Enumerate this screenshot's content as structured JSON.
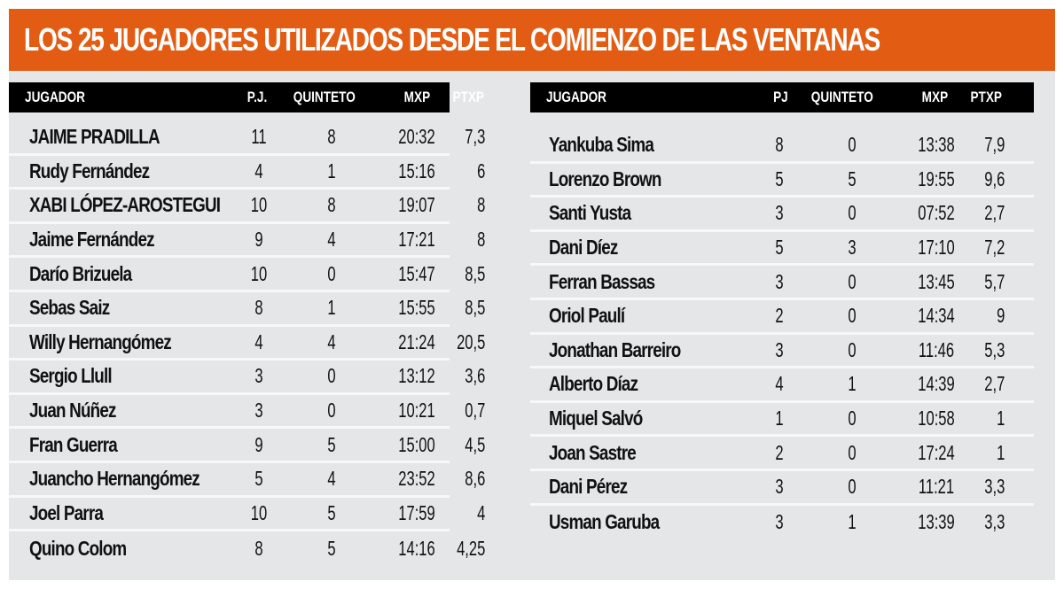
{
  "title": "LOS 25 JUGADORES UTILIZADOS DESDE EL COMIENZO DE LAS VENTANAS",
  "colors": {
    "banner": "#e35c14",
    "panel": "#e4e6e8",
    "header_bar": "#000000",
    "divider": "#f7f8f9"
  },
  "left_table": {
    "headers": {
      "player": "JUGADOR",
      "games": "P.J.",
      "starts": "QUINTETO",
      "minutes": "MXP",
      "points": "PTXP"
    },
    "rows": [
      {
        "player": "JAIME PRADILLA",
        "games": "11",
        "starts": "8",
        "minutes": "20:32",
        "points": "7,3"
      },
      {
        "player": "Rudy Fernández",
        "games": "4",
        "starts": "1",
        "minutes": "15:16",
        "points": "6"
      },
      {
        "player": "XABI LÓPEZ-AROSTEGUI",
        "games": "10",
        "starts": "8",
        "minutes": "19:07",
        "points": "8"
      },
      {
        "player": "Jaime Fernández",
        "games": "9",
        "starts": "4",
        "minutes": "17:21",
        "points": "8"
      },
      {
        "player": "Darío Brizuela",
        "games": "10",
        "starts": "0",
        "minutes": "15:47",
        "points": "8,5"
      },
      {
        "player": "Sebas Saiz",
        "games": "8",
        "starts": "1",
        "minutes": "15:55",
        "points": "8,5"
      },
      {
        "player": "Willy Hernangómez",
        "games": "4",
        "starts": "4",
        "minutes": "21:24",
        "points": "20,5"
      },
      {
        "player": "Sergio Llull",
        "games": "3",
        "starts": "0",
        "minutes": "13:12",
        "points": "3,6"
      },
      {
        "player": "Juan Núñez",
        "games": "3",
        "starts": "0",
        "minutes": "10:21",
        "points": "0,7"
      },
      {
        "player": "Fran Guerra",
        "games": "9",
        "starts": "5",
        "minutes": "15:00",
        "points": "4,5"
      },
      {
        "player": "Juancho Hernangómez",
        "games": "5",
        "starts": "4",
        "minutes": "23:52",
        "points": "8,6"
      },
      {
        "player": "Joel Parra",
        "games": "10",
        "starts": "5",
        "minutes": "17:59",
        "points": "4"
      },
      {
        "player": "Quino Colom",
        "games": "8",
        "starts": "5",
        "minutes": "14:16",
        "points": "4,25"
      }
    ]
  },
  "right_table": {
    "headers": {
      "player": "JUGADOR",
      "games": "PJ",
      "starts": "QUINTETO",
      "minutes": "MXP",
      "points": "PTXP"
    },
    "rows": [
      {
        "player": "Yankuba Sima",
        "games": "8",
        "starts": "0",
        "minutes": "13:38",
        "points": "7,9"
      },
      {
        "player": "Lorenzo Brown",
        "games": "5",
        "starts": "5",
        "minutes": "19:55",
        "points": "9,6"
      },
      {
        "player": "Santi Yusta",
        "games": "3",
        "starts": "0",
        "minutes": "07:52",
        "points": "2,7"
      },
      {
        "player": "Dani Díez",
        "games": "5",
        "starts": "3",
        "minutes": "17:10",
        "points": "7,2"
      },
      {
        "player": "Ferran Bassas",
        "games": "3",
        "starts": "0",
        "minutes": "13:45",
        "points": "5,7"
      },
      {
        "player": "Oriol Paulí",
        "games": "2",
        "starts": "0",
        "minutes": "14:34",
        "points": "9"
      },
      {
        "player": "Jonathan Barreiro",
        "games": "3",
        "starts": "0",
        "minutes": "11:46",
        "points": "5,3"
      },
      {
        "player": "Alberto Díaz",
        "games": "4",
        "starts": "1",
        "minutes": "14:39",
        "points": "2,7"
      },
      {
        "player": "Miquel Salvó",
        "games": "1",
        "starts": "0",
        "minutes": "10:58",
        "points": "1"
      },
      {
        "player": "Joan Sastre",
        "games": "2",
        "starts": "0",
        "minutes": "17:24",
        "points": "1"
      },
      {
        "player": "Dani Pérez",
        "games": "3",
        "starts": "0",
        "minutes": "11:21",
        "points": "3,3"
      },
      {
        "player": "Usman Garuba",
        "games": "3",
        "starts": "1",
        "minutes": "13:39",
        "points": "3,3"
      }
    ]
  }
}
